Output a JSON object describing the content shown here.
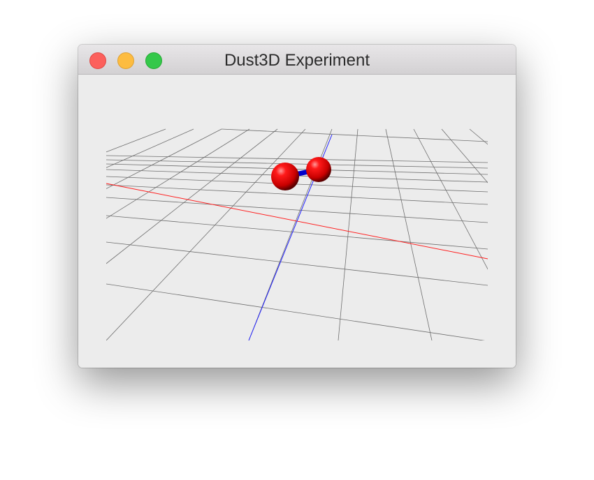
{
  "window": {
    "title": "Dust3D Experiment",
    "buttons": [
      "close",
      "minimize",
      "zoom"
    ]
  },
  "scene": {
    "background": "#ececec",
    "grid_color": "#6e6e6e",
    "x_axis_color": "#ff2020",
    "z_axis_color": "#2020ff",
    "node_color": "#e00000",
    "bone_color": "#0000cc",
    "node_count": 2
  }
}
